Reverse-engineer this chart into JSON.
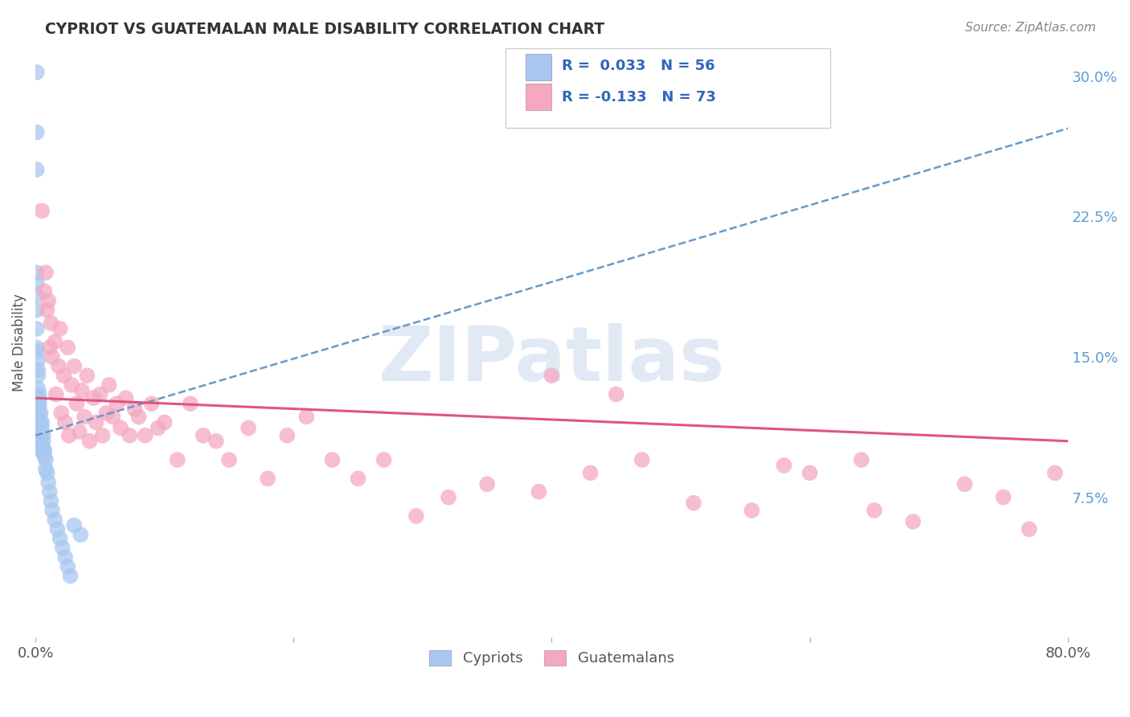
{
  "title": "CYPRIOT VS GUATEMALAN MALE DISABILITY CORRELATION CHART",
  "source": "Source: ZipAtlas.com",
  "ylabel": "Male Disability",
  "xlim": [
    0.0,
    0.8
  ],
  "ylim": [
    0.0,
    0.315
  ],
  "yticks_right": [
    0.075,
    0.15,
    0.225,
    0.3
  ],
  "yticklabels_right": [
    "7.5%",
    "15.0%",
    "22.5%",
    "30.0%"
  ],
  "cypriot_color": "#A8C8F0",
  "guatemalan_color": "#F5A8C0",
  "cypriot_line_color": "#6699CC",
  "guatemalan_line_color": "#E05580",
  "background_color": "#FFFFFF",
  "grid_color": "#CCCCCC",
  "legend_text_color": "#3366BB",
  "R_cypriot": 0.033,
  "N_cypriot": 56,
  "R_guatemalan": -0.133,
  "N_guatemalan": 73,
  "legend_cypriot": "Cypriots",
  "legend_guatemalan": "Guatemalans",
  "watermark": "ZIPatlas",
  "cypriot_x": [
    0.001,
    0.001,
    0.001,
    0.001,
    0.001,
    0.001,
    0.001,
    0.001,
    0.001,
    0.002,
    0.002,
    0.002,
    0.002,
    0.002,
    0.002,
    0.002,
    0.002,
    0.002,
    0.003,
    0.003,
    0.003,
    0.003,
    0.003,
    0.003,
    0.003,
    0.003,
    0.004,
    0.004,
    0.004,
    0.004,
    0.004,
    0.005,
    0.005,
    0.005,
    0.005,
    0.006,
    0.006,
    0.006,
    0.007,
    0.007,
    0.008,
    0.008,
    0.009,
    0.01,
    0.011,
    0.012,
    0.013,
    0.015,
    0.017,
    0.019,
    0.021,
    0.023,
    0.025,
    0.027,
    0.03,
    0.035
  ],
  "cypriot_y": [
    0.302,
    0.27,
    0.25,
    0.195,
    0.19,
    0.183,
    0.175,
    0.165,
    0.155,
    0.153,
    0.148,
    0.143,
    0.14,
    0.133,
    0.128,
    0.123,
    0.118,
    0.113,
    0.13,
    0.127,
    0.124,
    0.12,
    0.117,
    0.114,
    0.11,
    0.105,
    0.12,
    0.115,
    0.11,
    0.105,
    0.1,
    0.115,
    0.112,
    0.108,
    0.103,
    0.108,
    0.105,
    0.1,
    0.1,
    0.097,
    0.095,
    0.09,
    0.088,
    0.083,
    0.078,
    0.073,
    0.068,
    0.063,
    0.058,
    0.053,
    0.048,
    0.043,
    0.038,
    0.033,
    0.06,
    0.055
  ],
  "guatemalan_x": [
    0.005,
    0.007,
    0.008,
    0.009,
    0.01,
    0.011,
    0.012,
    0.013,
    0.015,
    0.016,
    0.018,
    0.019,
    0.02,
    0.022,
    0.023,
    0.025,
    0.026,
    0.028,
    0.03,
    0.032,
    0.034,
    0.036,
    0.038,
    0.04,
    0.042,
    0.045,
    0.047,
    0.05,
    0.052,
    0.055,
    0.057,
    0.06,
    0.063,
    0.066,
    0.07,
    0.073,
    0.077,
    0.08,
    0.085,
    0.09,
    0.095,
    0.1,
    0.11,
    0.12,
    0.13,
    0.14,
    0.15,
    0.165,
    0.18,
    0.195,
    0.21,
    0.23,
    0.25,
    0.27,
    0.295,
    0.32,
    0.35,
    0.39,
    0.43,
    0.47,
    0.51,
    0.555,
    0.6,
    0.64,
    0.68,
    0.72,
    0.75,
    0.77,
    0.79,
    0.4,
    0.45,
    0.58,
    0.65
  ],
  "guatemalan_y": [
    0.228,
    0.185,
    0.195,
    0.175,
    0.18,
    0.155,
    0.168,
    0.15,
    0.158,
    0.13,
    0.145,
    0.165,
    0.12,
    0.14,
    0.115,
    0.155,
    0.108,
    0.135,
    0.145,
    0.125,
    0.11,
    0.132,
    0.118,
    0.14,
    0.105,
    0.128,
    0.115,
    0.13,
    0.108,
    0.12,
    0.135,
    0.118,
    0.125,
    0.112,
    0.128,
    0.108,
    0.122,
    0.118,
    0.108,
    0.125,
    0.112,
    0.115,
    0.095,
    0.125,
    0.108,
    0.105,
    0.095,
    0.112,
    0.085,
    0.108,
    0.118,
    0.095,
    0.085,
    0.095,
    0.065,
    0.075,
    0.082,
    0.078,
    0.088,
    0.095,
    0.072,
    0.068,
    0.088,
    0.095,
    0.062,
    0.082,
    0.075,
    0.058,
    0.088,
    0.14,
    0.13,
    0.092,
    0.068
  ]
}
